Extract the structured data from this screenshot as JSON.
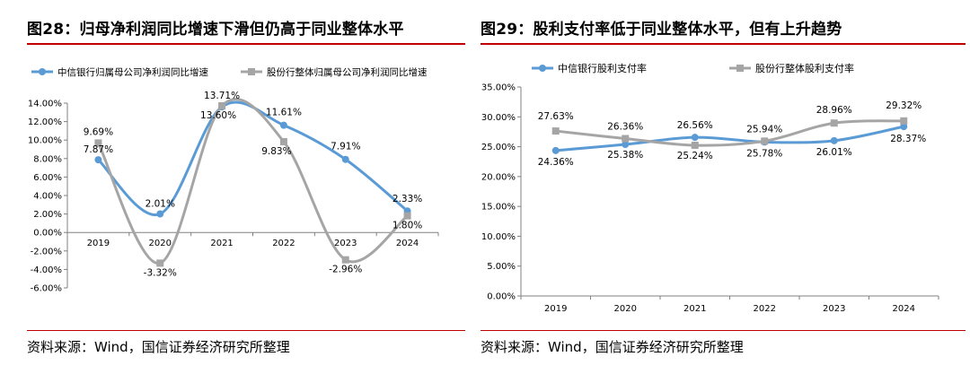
{
  "left": {
    "title": "图28：归母净利润同比增速下滑但仍高于同业整体水平",
    "source": "资料来源：Wind，国信证券经济研究所整理",
    "chart_data": {
      "type": "line",
      "categories": [
        "2019",
        "2020",
        "2021",
        "2022",
        "2023",
        "2024"
      ],
      "series": [
        {
          "name": "中信银行归属母公司净利润同比增速",
          "values": [
            7.87,
            2.01,
            13.6,
            11.61,
            7.91,
            2.33
          ],
          "labels": [
            "7.87%",
            "2.01%",
            "13.60%",
            "11.61%",
            "7.91%",
            "2.33%"
          ],
          "color": "#5b9bd5"
        },
        {
          "name": "股份行整体归属母公司净利润同比增速",
          "values": [
            9.69,
            -3.32,
            13.71,
            9.83,
            -2.96,
            1.8
          ],
          "labels": [
            "9.69%",
            "-3.32%",
            "13.71%",
            "9.83%",
            "-2.96%",
            "1.80%"
          ],
          "color": "#a5a5a5"
        }
      ],
      "yticks": [
        "14.00%",
        "12.00%",
        "10.00%",
        "8.00%",
        "6.00%",
        "4.00%",
        "2.00%",
        "0.00%",
        "-2.00%",
        "-4.00%",
        "-6.00%"
      ],
      "ylim": [
        -6,
        14
      ],
      "smooth": true,
      "legend": "top"
    }
  },
  "right": {
    "title": "图29：股利支付率低于同业整体水平，但有上升趋势",
    "source": "资料来源：Wind，国信证券经济研究所整理",
    "chart_data": {
      "type": "line",
      "categories": [
        "2019",
        "2020",
        "2021",
        "2022",
        "2023",
        "2024"
      ],
      "series": [
        {
          "name": "中信银行股利支付率",
          "values": [
            24.36,
            25.38,
            26.56,
            25.78,
            26.01,
            28.37
          ],
          "labels": [
            "24.36%",
            "25.38%",
            "26.56%",
            "25.78%",
            "26.01%",
            "28.37%"
          ],
          "color": "#5b9bd5"
        },
        {
          "name": "股份行整体股利支付率",
          "values": [
            27.63,
            26.36,
            25.24,
            25.94,
            28.96,
            29.32
          ],
          "labels": [
            "27.63%",
            "26.36%",
            "25.24%",
            "25.94%",
            "28.96%",
            "29.32%"
          ],
          "color": "#a5a5a5"
        }
      ],
      "yticks": [
        "35.00%",
        "30.00%",
        "25.00%",
        "20.00%",
        "15.00%",
        "10.00%",
        "5.00%",
        "0.00%"
      ],
      "ylim": [
        0,
        35
      ],
      "smooth": true,
      "legend": "top"
    }
  }
}
